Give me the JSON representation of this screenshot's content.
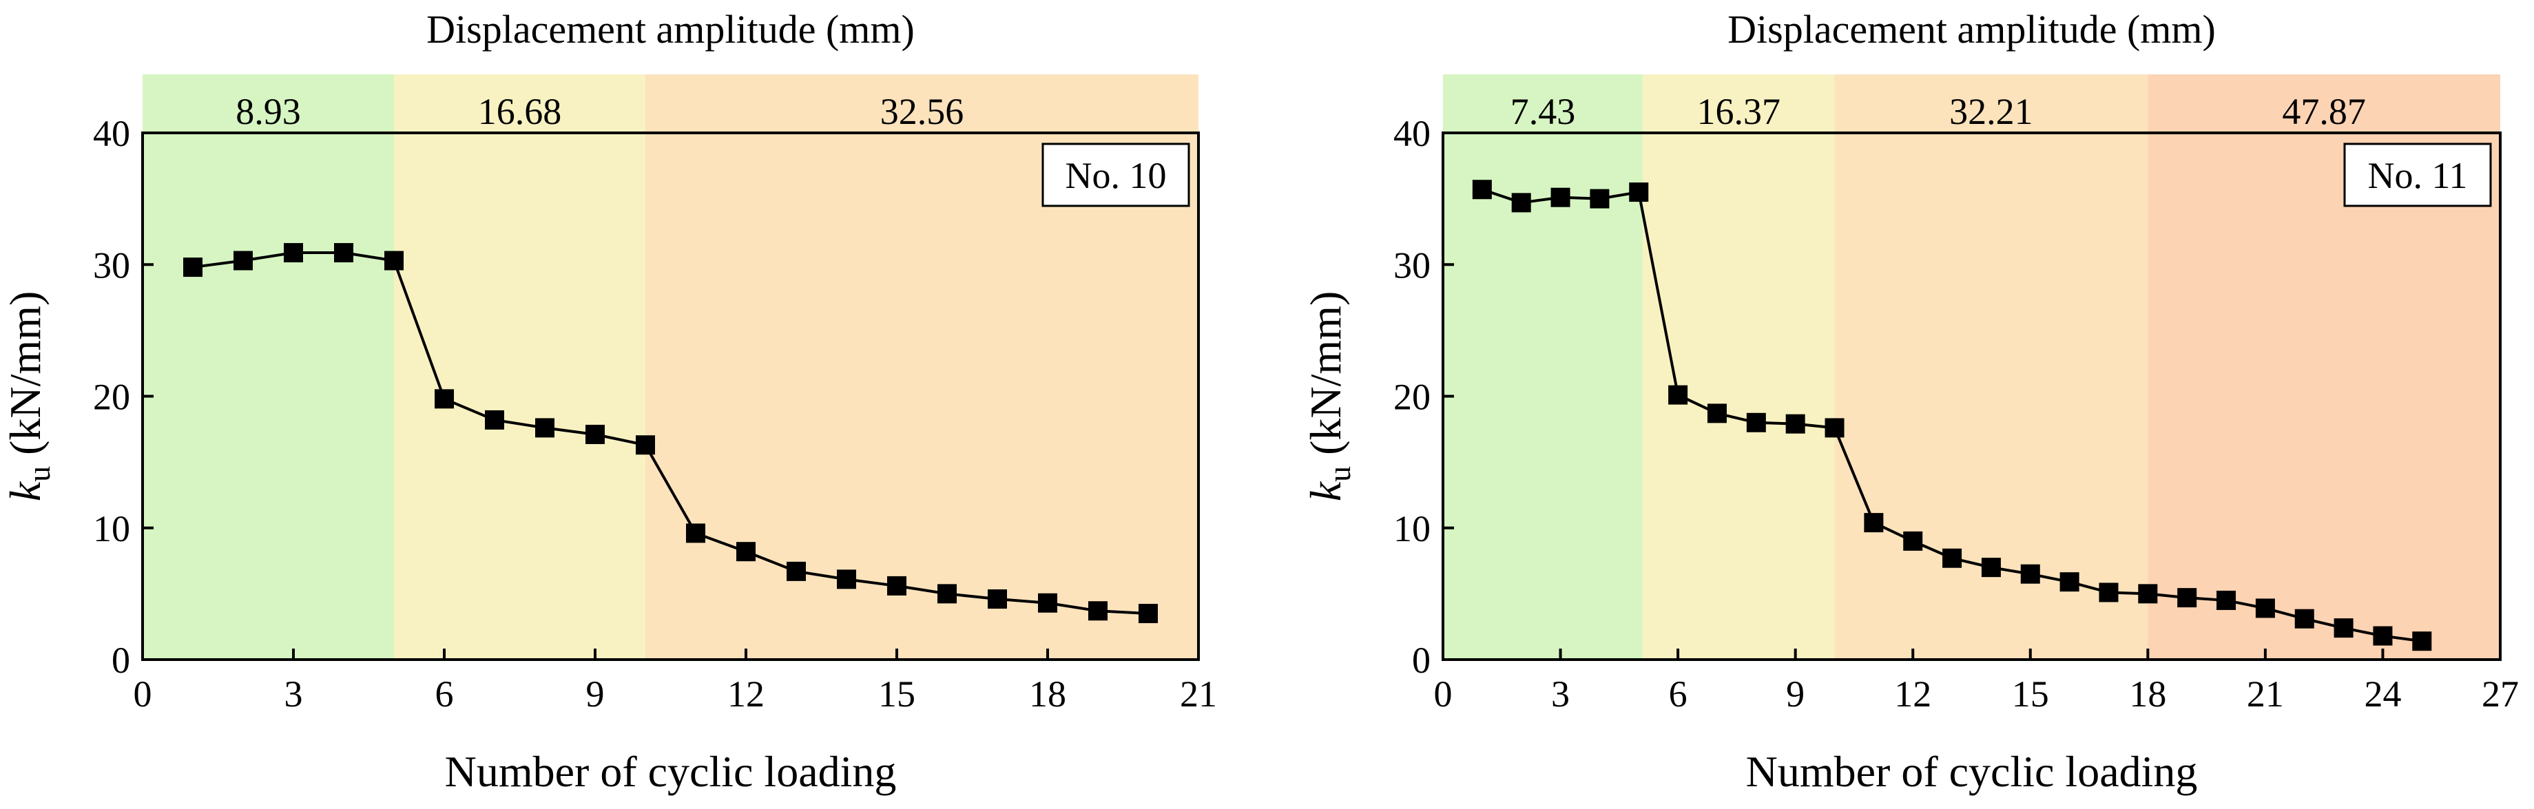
{
  "chart_data": [
    {
      "type": "line",
      "title": "Displacement amplitude (mm)",
      "xlabel": "Number of cyclic loading",
      "ylabel_var": "k",
      "ylabel_sub": "u",
      "ylabel_units": " (kN/mm)",
      "panel_label": "No. 10",
      "xlim": [
        0,
        21
      ],
      "ylim": [
        0,
        40
      ],
      "xticks": [
        0,
        3,
        6,
        9,
        12,
        15,
        18,
        21
      ],
      "yticks": [
        0,
        10,
        20,
        30,
        40
      ],
      "bands": [
        {
          "label": "8.93",
          "x0": 0,
          "x1": 5,
          "color": "#d6f5c2"
        },
        {
          "label": "16.68",
          "x0": 5,
          "x1": 10,
          "color": "#f8f2c2"
        },
        {
          "label": "32.56",
          "x0": 10,
          "x1": 21,
          "color": "#fce3bc"
        }
      ],
      "series": [
        {
          "name": "k_u",
          "marker": "square",
          "x": [
            1,
            2,
            3,
            4,
            5,
            6,
            7,
            8,
            9,
            10,
            11,
            12,
            13,
            14,
            15,
            16,
            17,
            18,
            19,
            20
          ],
          "y": [
            29.8,
            30.3,
            30.9,
            30.9,
            30.3,
            19.8,
            18.2,
            17.6,
            17.1,
            16.3,
            9.6,
            8.2,
            6.7,
            6.1,
            5.6,
            5.0,
            4.6,
            4.3,
            3.7,
            3.5
          ]
        }
      ]
    },
    {
      "type": "line",
      "title": "Displacement amplitude (mm)",
      "xlabel": "Number of cyclic loading",
      "ylabel_var": "k",
      "ylabel_sub": "u",
      "ylabel_units": " (kN/mm)",
      "panel_label": "No. 11",
      "xlim": [
        0,
        27
      ],
      "ylim": [
        0,
        40
      ],
      "xticks": [
        0,
        3,
        6,
        9,
        12,
        15,
        18,
        21,
        24,
        27
      ],
      "yticks": [
        0,
        10,
        20,
        30,
        40
      ],
      "bands": [
        {
          "label": "7.43",
          "x0": 0,
          "x1": 5.1,
          "color": "#d6f5c2"
        },
        {
          "label": "16.37",
          "x0": 5.1,
          "x1": 10,
          "color": "#f8f2c2"
        },
        {
          "label": "32.21",
          "x0": 10,
          "x1": 18,
          "color": "#fce3bc"
        },
        {
          "label": "47.87",
          "x0": 18,
          "x1": 27,
          "color": "#fcd3b3"
        }
      ],
      "series": [
        {
          "name": "k_u",
          "marker": "square",
          "x": [
            1,
            2,
            3,
            4,
            5,
            6,
            7,
            8,
            9,
            10,
            11,
            12,
            13,
            14,
            15,
            16,
            17,
            18,
            19,
            20,
            21,
            22,
            23,
            24,
            25
          ],
          "y": [
            35.7,
            34.7,
            35.1,
            35.0,
            35.5,
            20.1,
            18.7,
            18.0,
            17.9,
            17.6,
            10.4,
            9.0,
            7.7,
            7.0,
            6.5,
            5.9,
            5.1,
            5.0,
            4.7,
            4.5,
            3.9,
            3.1,
            2.4,
            1.8,
            1.4
          ]
        }
      ]
    }
  ]
}
